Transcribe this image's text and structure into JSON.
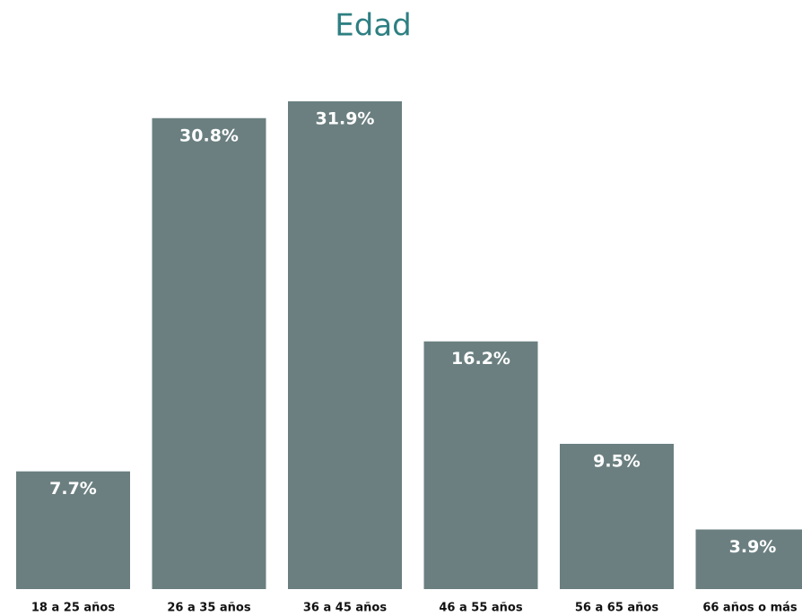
{
  "chart_data": {
    "type": "bar",
    "title": "Edad",
    "categories": [
      "18 a 25 años",
      "26 a 35 años",
      "36 a 45 años",
      "46 a 55 años",
      "56 a 65 años",
      "66 años o más"
    ],
    "values": [
      7.7,
      30.8,
      31.9,
      16.2,
      9.5,
      3.9
    ],
    "value_labels": [
      "7.7%",
      "30.8%",
      "31.9%",
      "16.2%",
      "9.5%",
      "3.9%"
    ],
    "color": "#6b7f80"
  }
}
